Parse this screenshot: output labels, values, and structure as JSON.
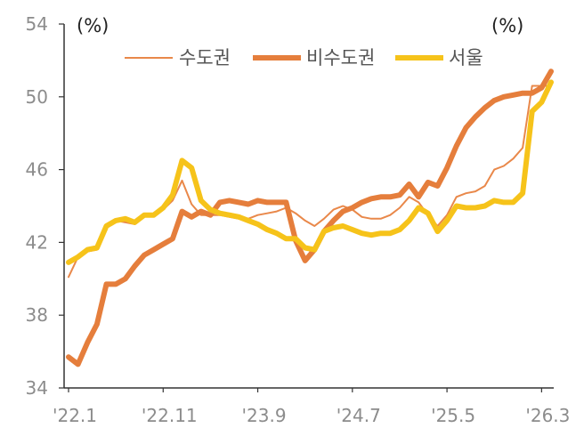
{
  "chart_data": {
    "type": "line",
    "title": "",
    "y_unit_left": "(%)",
    "y_unit_right": "(%)",
    "ylim": [
      34,
      54
    ],
    "y_ticks": [
      34,
      38,
      42,
      46,
      50,
      54
    ],
    "y_tick_labels": [
      "34",
      "38",
      "42",
      "46",
      "50",
      "54"
    ],
    "x_count": 52,
    "x_tick_index": [
      0,
      10,
      20,
      30,
      40,
      50
    ],
    "x_tick_labels": [
      "'22.1",
      "'22.11",
      "'23.9",
      "'24.7",
      "'25.5",
      "'26.3"
    ],
    "legend_position": "top-center",
    "series": [
      {
        "name": "수도권",
        "color": "#E9884A",
        "width": 2,
        "values": [
          40.1,
          41.2,
          41.5,
          41.6,
          42.8,
          43.2,
          43.1,
          43.0,
          43.4,
          43.5,
          43.8,
          44.3,
          45.4,
          44.1,
          43.5,
          43.5,
          43.5,
          43.4,
          43.3,
          43.3,
          43.5,
          43.6,
          43.7,
          43.9,
          43.6,
          43.2,
          42.9,
          43.3,
          43.8,
          44.0,
          43.8,
          43.4,
          43.3,
          43.3,
          43.5,
          43.9,
          44.5,
          44.2,
          43.5,
          42.9,
          43.5,
          44.5,
          44.7,
          44.8,
          45.1,
          46.0,
          46.2,
          46.6,
          47.2,
          50.6,
          50.6,
          50.6
        ]
      },
      {
        "name": "비수도권",
        "color": "#E57E3C",
        "width": 6,
        "values": [
          35.7,
          35.3,
          36.5,
          37.5,
          39.7,
          39.7,
          40.0,
          40.7,
          41.3,
          41.6,
          41.9,
          42.2,
          43.7,
          43.4,
          43.7,
          43.5,
          44.2,
          44.3,
          44.2,
          44.1,
          44.3,
          44.2,
          44.2,
          44.2,
          42.1,
          41.0,
          41.6,
          42.6,
          43.2,
          43.7,
          43.9,
          44.2,
          44.4,
          44.5,
          44.5,
          44.6,
          45.2,
          44.5,
          45.3,
          45.1,
          46.1,
          47.3,
          48.3,
          48.9,
          49.4,
          49.8,
          50.0,
          50.1,
          50.2,
          50.2,
          50.5,
          51.4
        ]
      },
      {
        "name": "서울",
        "color": "#F6C31A",
        "width": 6,
        "values": [
          40.9,
          41.2,
          41.6,
          41.7,
          42.9,
          43.2,
          43.3,
          43.1,
          43.5,
          43.5,
          43.9,
          44.6,
          46.5,
          46.1,
          44.3,
          43.8,
          43.6,
          43.5,
          43.4,
          43.2,
          43.0,
          42.7,
          42.5,
          42.2,
          42.2,
          41.7,
          41.6,
          42.6,
          42.8,
          42.9,
          42.7,
          42.5,
          42.4,
          42.5,
          42.5,
          42.7,
          43.2,
          43.9,
          43.6,
          42.6,
          43.2,
          44.0,
          43.9,
          43.9,
          44.0,
          44.3,
          44.2,
          44.2,
          44.7,
          49.2,
          49.7,
          50.8
        ]
      }
    ]
  }
}
